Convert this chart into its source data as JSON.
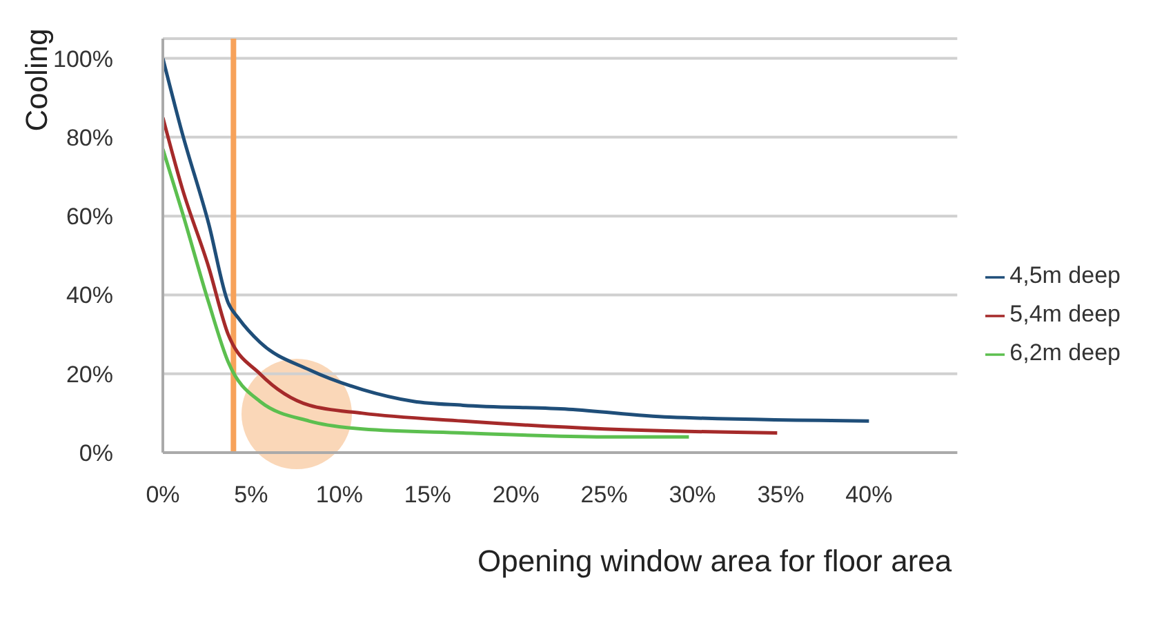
{
  "chart_data": {
    "type": "line",
    "xlabel": "Opening window area for floor area",
    "ylabel": "Cooling",
    "xlim": [
      0,
      45
    ],
    "xticks": [
      {
        "value": 0,
        "label": "0%"
      },
      {
        "value": 5,
        "label": "5%"
      },
      {
        "value": 10,
        "label": "10%"
      },
      {
        "value": 15,
        "label": "15%"
      },
      {
        "value": 20,
        "label": "20%"
      },
      {
        "value": 25,
        "label": "25%"
      },
      {
        "value": 30,
        "label": "30%"
      },
      {
        "value": 35,
        "label": "35%"
      },
      {
        "value": 40,
        "label": "40%"
      }
    ],
    "ylim": [
      0,
      105
    ],
    "yticks": [
      {
        "value": 0,
        "label": "0%"
      },
      {
        "value": 20,
        "label": "20%"
      },
      {
        "value": 40,
        "label": "40%"
      },
      {
        "value": 60,
        "label": "60%"
      },
      {
        "value": 80,
        "label": "80%"
      },
      {
        "value": 100,
        "label": "100%"
      }
    ],
    "grid": "y",
    "legend": "right",
    "marker": "none",
    "line_style": "solid",
    "series": [
      {
        "name": "4,5m deep",
        "color": "#1f4e79",
        "x": [
          0,
          1.1,
          2.6,
          3.7,
          4.3,
          5.5,
          8.3,
          11.3,
          14.2,
          17,
          23,
          28.7,
          40
        ],
        "values": [
          100,
          81,
          58,
          38,
          34,
          28,
          21,
          16,
          13,
          12,
          11,
          9,
          8
        ]
      },
      {
        "name": "5,4m deep",
        "color": "#a52a2a",
        "x": [
          0,
          1.1,
          2.6,
          3.7,
          5.5,
          8.3,
          11.3,
          17,
          25,
          34.8
        ],
        "values": [
          85,
          67,
          47,
          30,
          20,
          12,
          10,
          8,
          6,
          5
        ]
      },
      {
        "name": "6,2m deep",
        "color": "#5cbf4f",
        "x": [
          0,
          1.1,
          2.6,
          3.7,
          5.5,
          8.3,
          11.3,
          17,
          25,
          29.8
        ],
        "values": [
          77,
          61,
          38,
          23,
          13,
          8,
          6,
          5,
          4,
          4
        ]
      }
    ],
    "ref_lines": [
      {
        "axis": "x",
        "value": 4,
        "color": "#f7a25a"
      }
    ]
  }
}
